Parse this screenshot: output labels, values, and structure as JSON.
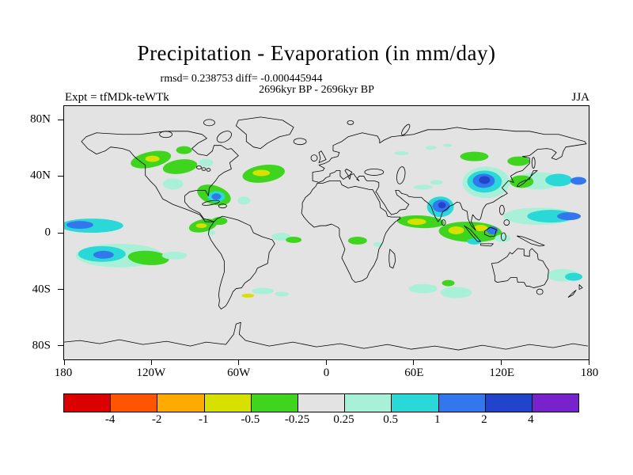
{
  "header": {
    "title": "Precipitation - Evaporation (in mm/day)",
    "stats_line": "rmsd= 0.238753 diff= -0.000445944",
    "comparison_line": "2696kyr BP - 2696kyr BP",
    "experiment_label": "Expt = tfMDk-teWTk",
    "season_label": "JJA"
  },
  "axes": {
    "lat_ticks": [
      {
        "label": "80N",
        "lat": 80
      },
      {
        "label": "40N",
        "lat": 40
      },
      {
        "label": "0",
        "lat": 0
      },
      {
        "label": "40S",
        "lat": -40
      },
      {
        "label": "80S",
        "lat": -80
      }
    ],
    "lon_ticks": [
      {
        "label": "180",
        "lon": -180
      },
      {
        "label": "120W",
        "lon": -120
      },
      {
        "label": "60W",
        "lon": -60
      },
      {
        "label": "0",
        "lon": 0
      },
      {
        "label": "60E",
        "lon": 60
      },
      {
        "label": "120E",
        "lon": 120
      },
      {
        "label": "180",
        "lon": 180
      }
    ]
  },
  "colorbar": {
    "labels": [
      "-4",
      "-2",
      "-1",
      "-0.5",
      "-0.25",
      "0.25",
      "0.5",
      "1",
      "2",
      "4"
    ],
    "colors": [
      "#dd0000",
      "#ff5500",
      "#ffaa00",
      "#d8e000",
      "#3fd41e",
      "#e3e3e3",
      "#a8f0d8",
      "#2ad8d8",
      "#3377ee",
      "#2244cc",
      "#7722cc"
    ]
  },
  "map": {
    "background": "#e3e3e3",
    "coastline_color": "#000000"
  },
  "chart_data": {
    "type": "heatmap",
    "title": "Precipitation - Evaporation (in mm/day)",
    "units": "mm/day",
    "season": "JJA",
    "experiment": "tfMDk-teWTk",
    "comparison": "2696kyr BP - 2696kyr BP",
    "rmsd": 0.238753,
    "diff": -0.000445944,
    "projection": "equirectangular world map",
    "lon_range": [
      -180,
      180
    ],
    "lat_range": [
      -90,
      90
    ],
    "contour_levels": [
      -4,
      -2,
      -1,
      -0.5,
      -0.25,
      0.25,
      0.5,
      1,
      2,
      4
    ],
    "palette": [
      "#dd0000",
      "#ff5500",
      "#ffaa00",
      "#d8e000",
      "#3fd41e",
      "#e3e3e3",
      "#a8f0d8",
      "#2ad8d8",
      "#3377ee",
      "#2244cc",
      "#7722cc"
    ],
    "neutral_band": "-0.25 to 0.25 shown in gray (same as background)",
    "anomaly_regions": [
      {
        "region": "Central/NE North Pacific (40-55N)",
        "value_range": "-0.5 to -0.25"
      },
      {
        "region": "Eastern North America (28-40N)",
        "value_range": "-0.5 to -0.25 with +0.5 to +1 coastal spot"
      },
      {
        "region": "Central North Atlantic (35-45N)",
        "value_range": "-1 to -0.25"
      },
      {
        "region": "Caribbean / Central America",
        "value_range": "-1 to -0.25"
      },
      {
        "region": "Equatorial Pacific band near date line (5-12N)",
        "value_range": "+0.5 to +2"
      },
      {
        "region": "South-central Pacific (8-22S, 180-140W)",
        "value_range": "+0.25 to +2 beside -0.5 to -0.25 patch"
      },
      {
        "region": "Equatorial Atlantic",
        "value_range": "small mixed -0.5 to +0.5 patches"
      },
      {
        "region": "South Atlantic (35-40S)",
        "value_range": "+0.25 to +0.5"
      },
      {
        "region": "Central Africa",
        "value_range": "-0.5 to -0.25 small patch"
      },
      {
        "region": "Arabian Sea to south of India (5-15N)",
        "value_range": "-1 to -0.25"
      },
      {
        "region": "NE India / Bay of Bengal (15-25N)",
        "value_range": "+1 to +4"
      },
      {
        "region": "Southern Indian Ocean (30-40S)",
        "value_range": "+0.25 to +0.5"
      },
      {
        "region": "Eastern China / Korea / Japan (28-45N)",
        "value_range": "+1 to +4"
      },
      {
        "region": "NE Asia (45-55N)",
        "value_range": "-0.5 to -0.25"
      },
      {
        "region": "Maritime Continent",
        "value_range": "-1 to -0.25 with +1 to +2 spot"
      },
      {
        "region": "Tropical West Pacific (5-15N, 140E-180)",
        "value_range": "+0.5 to +2"
      },
      {
        "region": "NW Pacific east of Japan (30-40N)",
        "value_range": "mixed -0.5 to +2"
      },
      {
        "region": "SW Pacific (20-30S, near 180)",
        "value_range": "+0.25 to +1"
      }
    ]
  }
}
